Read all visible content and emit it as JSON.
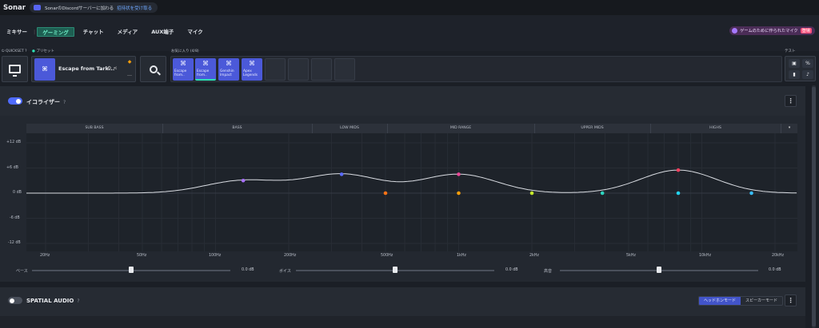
{
  "app": {
    "title": "Sonar"
  },
  "discord": {
    "text": "SonarのDiscordサーバーに加わる",
    "link": "招待状を受け取る"
  },
  "nav": {
    "items": [
      {
        "label": "ミキサー"
      },
      {
        "label": "|"
      },
      {
        "label": "ゲーミング",
        "active": true
      },
      {
        "label": "チャット"
      },
      {
        "label": "メディア"
      },
      {
        "label": "AUX端子"
      },
      {
        "label": "マイク"
      }
    ],
    "promo": {
      "label": "ゲームのために作られたマイク",
      "badge": "登場"
    }
  },
  "quickset": {
    "label": "QUICKSET",
    "help": "?",
    "icon": "monitor-icon"
  },
  "preset": {
    "label": "プリセット",
    "name": "Escape from Tark..."
  },
  "favorites": {
    "label": "お気に入り (4/8)",
    "items": [
      {
        "line1": "Escape",
        "line2": "from..",
        "selected": false
      },
      {
        "line1": "Escape",
        "line2": "from..",
        "selected": true
      },
      {
        "line1": "Genshin",
        "line2": "Impact",
        "selected": false
      },
      {
        "line1": "Apex",
        "line2": "Legends",
        "selected": false
      }
    ],
    "empty_slots": 4
  },
  "test": {
    "label": "テスト"
  },
  "equalizer": {
    "title": "イコライザー",
    "help": "?",
    "enabled": true,
    "bands": [
      "SUB BASS",
      "BASS",
      "LOW MIDS",
      "MID RANGE",
      "UPPER MIDS",
      "HIGHS"
    ],
    "db_ticks": [
      "+12 dB",
      "+6 dB",
      "0 dB",
      "-6 dB",
      "-12 dB"
    ],
    "hz_ticks": [
      "20Hz",
      "50Hz",
      "100Hz",
      "200Hz",
      "500Hz",
      "1kHz",
      "2kHz",
      "5kHz",
      "10kHz",
      "20kHz"
    ],
    "points": [
      {
        "freq_hz": 130,
        "gain_db": 3.0,
        "color": "#a970ff"
      },
      {
        "freq_hz": 330,
        "gain_db": 4.5,
        "color": "#5b6bff"
      },
      {
        "freq_hz": 500,
        "gain_db": 0,
        "color": "#f97316"
      },
      {
        "freq_hz": 1000,
        "gain_db": 4.5,
        "color": "#ec4899"
      },
      {
        "freq_hz": 1000,
        "gain_db": 0,
        "color": "#f59e0b"
      },
      {
        "freq_hz": 2000,
        "gain_db": 0,
        "color": "#c6e82a"
      },
      {
        "freq_hz": 3900,
        "gain_db": 0,
        "color": "#2dd4bf"
      },
      {
        "freq_hz": 8000,
        "gain_db": 5.5,
        "color": "#f43f5e"
      },
      {
        "freq_hz": 8000,
        "gain_db": 0,
        "color": "#22d3ee"
      },
      {
        "freq_hz": 16000,
        "gain_db": 0,
        "color": "#38bdf8"
      }
    ],
    "sliders": [
      {
        "label": "ベース",
        "value": "0.0 dB",
        "level": 0.5
      },
      {
        "label": "ボイス",
        "value": "0.0 dB",
        "level": 0.5
      },
      {
        "label": "高音",
        "value": "0.0 dB",
        "level": 0.5
      }
    ]
  },
  "spatial": {
    "title": "SPATIAL AUDIO",
    "help": "?",
    "enabled": false,
    "modes": [
      {
        "label": "ヘッドホンモード",
        "active": true
      },
      {
        "label": "スピーカーモード",
        "active": false
      }
    ]
  },
  "colors": {
    "accent": "#2ee0b6",
    "blue": "#4b59d9",
    "toggle_on": "#4f6bff"
  }
}
